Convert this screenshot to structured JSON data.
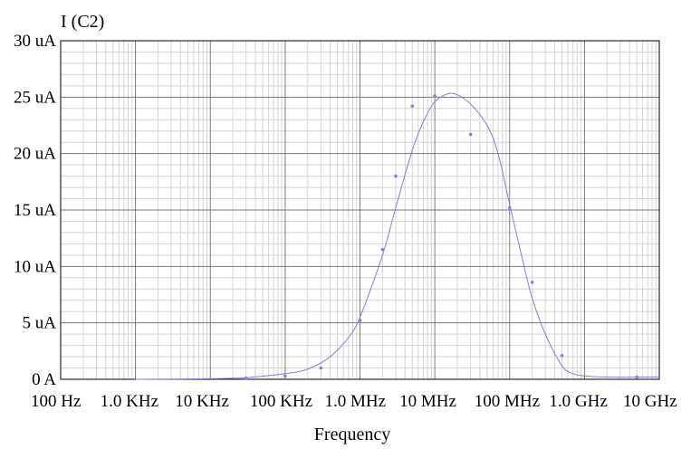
{
  "chart_data": {
    "type": "line",
    "title": "",
    "ylabel": "I (C2)",
    "xlabel": "Frequency",
    "x_scale": "log",
    "xlim_hz": [
      100,
      10000000000
    ],
    "ylim_uA": [
      0,
      30
    ],
    "grid": true,
    "x_tick_labels": [
      "100 Hz",
      "1.0 KHz",
      "10 KHz",
      "100 KHz",
      "1.0 MHz",
      "10 MHz",
      "100 MHz",
      "1.0 GHz",
      "10 GHz"
    ],
    "y_tick_labels": [
      "0 A",
      "5 uA",
      "10 uA",
      "15 uA",
      "20 uA",
      "25 uA",
      "30 uA"
    ],
    "y_tick_values": [
      0,
      5,
      10,
      15,
      20,
      25,
      30
    ],
    "line_color": "#8080e0",
    "series": [
      {
        "x": [
          1000,
          10000,
          30000,
          100000,
          200000,
          400000,
          700000,
          1000000,
          2000000,
          3000000,
          5000000,
          7000000,
          10000000,
          15000000,
          20000000,
          30000000,
          50000000,
          70000000,
          100000000,
          150000000,
          200000000,
          300000000,
          500000000,
          700000000,
          1000000000,
          2000000000,
          10000000000
        ],
        "y": [
          0.0,
          0.05,
          0.15,
          0.5,
          0.9,
          2.0,
          3.7,
          5.5,
          11.0,
          15.2,
          20.3,
          22.8,
          24.6,
          25.3,
          25.2,
          24.4,
          22.5,
          20.0,
          15.5,
          10.5,
          7.2,
          4.0,
          1.2,
          0.5,
          0.3,
          0.2,
          0.2
        ]
      }
    ],
    "markers": {
      "x": [
        30000,
        100000,
        300000,
        1000000,
        2000000,
        3000000,
        5000000,
        10000000,
        30000000,
        100000000,
        200000000,
        500000000,
        5000000000
      ],
      "y": [
        0.1,
        0.3,
        1.0,
        5.2,
        11.5,
        18.0,
        24.2,
        25.1,
        21.7,
        15.2,
        8.6,
        2.1,
        0.2
      ]
    }
  }
}
